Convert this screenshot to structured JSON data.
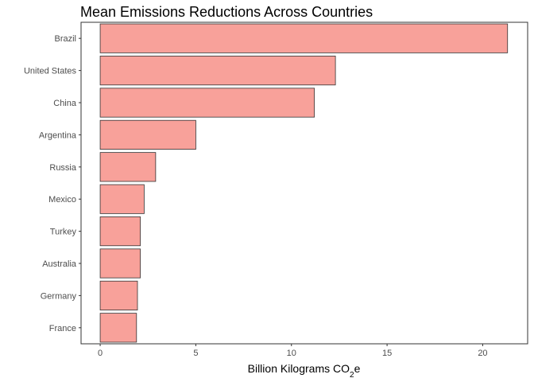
{
  "chart_data": {
    "type": "bar",
    "orientation": "horizontal",
    "title": "Mean Emissions Reductions Across Countries",
    "xlabel": "Billion Kilograms CO₂e",
    "xlabel_main": "Billion Kilograms CO",
    "xlabel_sub": "2",
    "xlabel_suffix": "e",
    "ylabel": "",
    "categories": [
      "Brazil",
      "United States",
      "China",
      "Argentina",
      "Russia",
      "Mexico",
      "Turkey",
      "Australia",
      "Germany",
      "France"
    ],
    "values": [
      21.3,
      12.3,
      11.2,
      5.0,
      2.9,
      2.3,
      2.1,
      2.1,
      1.95,
      1.9
    ],
    "xlim": [
      -1.0,
      22.35
    ],
    "xticks": [
      0,
      5,
      10,
      15,
      20
    ],
    "xtick_labels": [
      "0",
      "5",
      "10",
      "15",
      "20"
    ],
    "grid": false,
    "colors": {
      "bar_fill": "#f8a19a",
      "bar_stroke": "#333333",
      "panel_border": "#333333",
      "tick": "#333333"
    }
  }
}
